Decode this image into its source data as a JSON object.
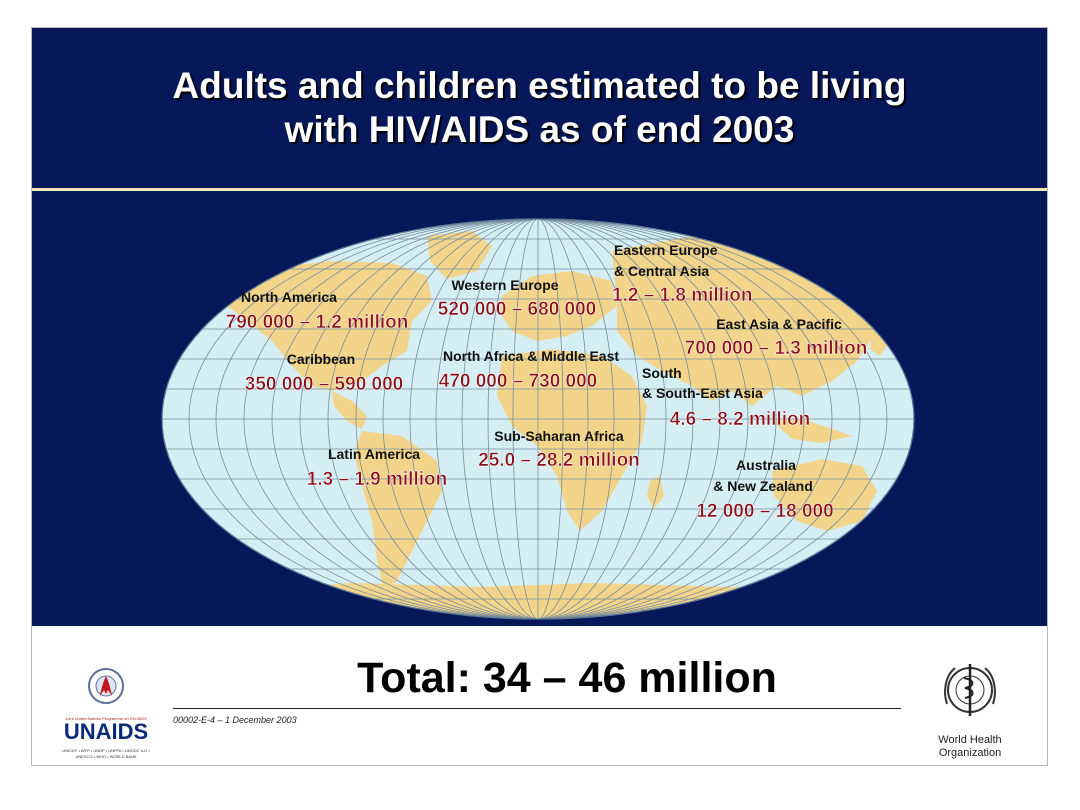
{
  "slide": {
    "title_line1": "Adults and children estimated to be living",
    "title_line2": "with HIV/AIDS as of end 2003",
    "total": "Total: 34 – 46 million",
    "slide_code": "00002-E-4 – 1 December 2003"
  },
  "colors": {
    "background": "#06175a",
    "map_ocean": "#d4eef4",
    "map_land": "#f2d58b",
    "value_text": "#8b0e18",
    "divider": "#f4e6b0"
  },
  "regions": [
    {
      "name": "North America",
      "range": "790 000 – 1.2 million"
    },
    {
      "name": "Caribbean",
      "range": "350 000 – 590 000"
    },
    {
      "name": "Latin America",
      "range": "1.3 – 1.9 million"
    },
    {
      "name": "Western Europe",
      "range": "520 000 – 680 000"
    },
    {
      "name": "North Africa & Middle East",
      "range": "470 000 – 730 000"
    },
    {
      "name": "Sub-Saharan Africa",
      "range": "25.0 – 28.2 million"
    },
    {
      "name_line1": "Eastern Europe",
      "name_line2": "& Central Asia",
      "range": "1.2 – 1.8 million"
    },
    {
      "name": "East Asia & Pacific",
      "range": "700 000 – 1.3 million"
    },
    {
      "name_line1": "South",
      "name_line2": "& South-East Asia",
      "range": "4.6 – 8.2 million"
    },
    {
      "name_line1": "Australia",
      "name_line2": "& New Zealand",
      "range": "12 000 – 18 000"
    }
  ],
  "logos": {
    "unaids_wordmark": "UNAIDS",
    "unaids_tagline": "Joint United Nations Programme on HIV/AIDS",
    "unaids_members": "UNICEF • WFP • UNDP • UNFPA • UNODC ILO • UNESCO • WHO • WORLD BANK",
    "who_line1": "World Health",
    "who_line2": "Organization"
  }
}
